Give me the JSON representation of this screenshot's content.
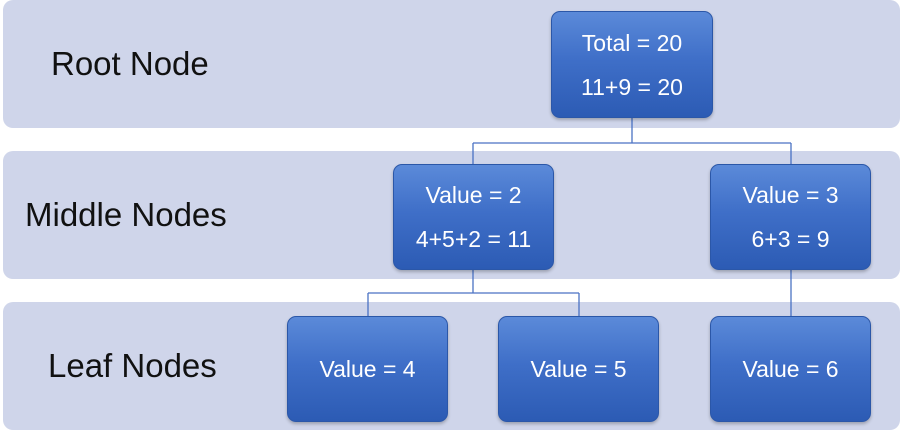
{
  "levels": {
    "root": "Root Node",
    "middle": "Middle Nodes",
    "leaf": "Leaf Nodes"
  },
  "nodes": {
    "root": {
      "line1": "Total = 20",
      "line2": "11+9 = 20"
    },
    "middle_left": {
      "line1": "Value = 2",
      "line2": "4+5+2 = 11"
    },
    "middle_right": {
      "line1": "Value = 3",
      "line2": "6+3 = 9"
    },
    "leaf_1": {
      "line1": "Value = 4"
    },
    "leaf_2": {
      "line1": "Value = 5"
    },
    "leaf_3": {
      "line1": "Value = 6"
    }
  },
  "colors": {
    "band": "#cfd5ea",
    "node_top": "#5b8ad9",
    "node_bottom": "#2c5bb4",
    "connector": "#4a72c4"
  }
}
